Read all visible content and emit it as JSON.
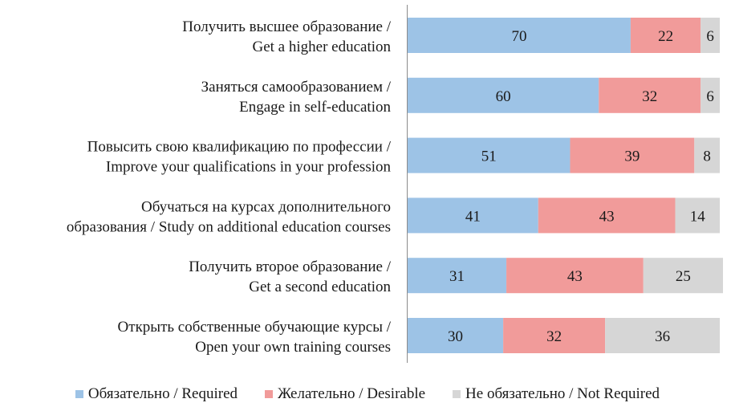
{
  "chart_data": {
    "type": "bar",
    "orientation": "horizontal",
    "stacked": true,
    "categories": [
      [
        "Получить высшее образование /",
        "Get a higher education"
      ],
      [
        "Заняться самообразованием /",
        "Engage in self-education"
      ],
      [
        "Повысить свою квалификацию по профессии /",
        "Improve your qualifications in your profession"
      ],
      [
        "Обучаться на курсах дополнительного",
        "образования / Study on additional education courses"
      ],
      [
        "Получить второе образование /",
        "Get a second education"
      ],
      [
        "Открыть собственные обучающие курсы /",
        "Open your own training courses"
      ]
    ],
    "series": [
      {
        "name": "Обязательно / Required",
        "color": "#9dc3e6",
        "values": [
          70,
          60,
          51,
          41,
          31,
          30
        ]
      },
      {
        "name": "Желательно / Desirable",
        "color": "#f19b9a",
        "values": [
          22,
          32,
          39,
          43,
          43,
          32
        ]
      },
      {
        "name": "Не обязательно / Not Required",
        "color": "#d6d6d6",
        "values": [
          6,
          6,
          8,
          14,
          25,
          36
        ]
      }
    ],
    "xlim": [
      0,
      100
    ],
    "grid": false,
    "legend_position": "bottom"
  }
}
